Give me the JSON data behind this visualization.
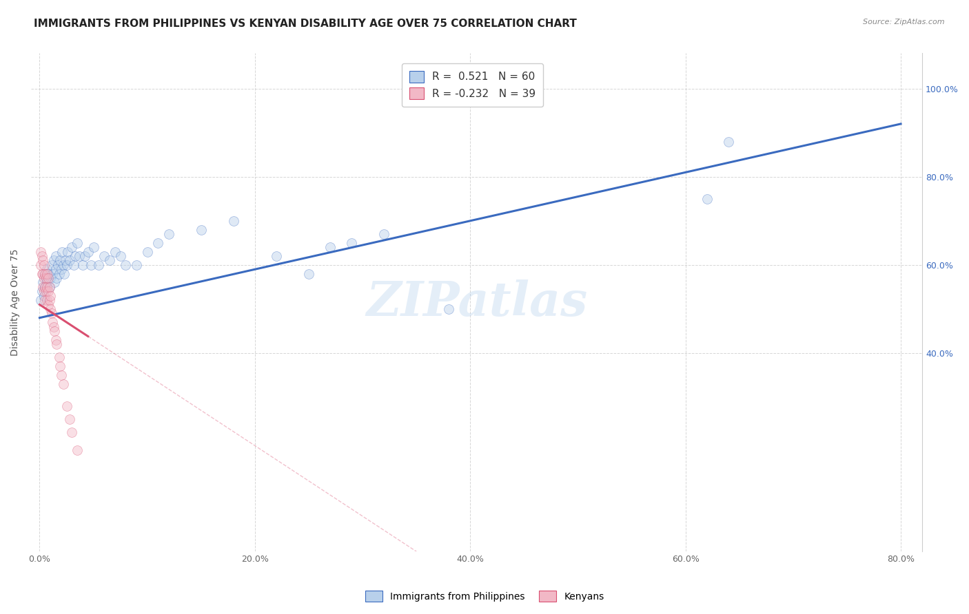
{
  "title": "IMMIGRANTS FROM PHILIPPINES VS KENYAN DISABILITY AGE OVER 75 CORRELATION CHART",
  "source": "Source: ZipAtlas.com",
  "ylabel": "Disability Age Over 75",
  "x_tick_labels": [
    "0.0%",
    "20.0%",
    "40.0%",
    "60.0%",
    "80.0%"
  ],
  "x_tick_vals": [
    0.0,
    0.2,
    0.4,
    0.6,
    0.8
  ],
  "y_tick_labels_right": [
    "100.0%",
    "80.0%",
    "60.0%",
    "40.0%"
  ],
  "y_tick_vals": [
    1.0,
    0.8,
    0.6,
    0.4
  ],
  "xlim": [
    -0.008,
    0.82
  ],
  "ylim": [
    -0.05,
    1.08
  ],
  "watermark": "ZIPatlas",
  "blue": {
    "name": "Immigrants from Philippines",
    "R": 0.521,
    "N": 60,
    "color": "#b8d0eb",
    "line_color": "#3a6abf",
    "x": [
      0.001,
      0.002,
      0.003,
      0.004,
      0.005,
      0.005,
      0.006,
      0.007,
      0.007,
      0.008,
      0.009,
      0.01,
      0.011,
      0.012,
      0.013,
      0.014,
      0.015,
      0.015,
      0.016,
      0.017,
      0.018,
      0.019,
      0.02,
      0.021,
      0.022,
      0.023,
      0.024,
      0.025,
      0.026,
      0.028,
      0.03,
      0.032,
      0.033,
      0.035,
      0.037,
      0.04,
      0.042,
      0.045,
      0.048,
      0.05,
      0.055,
      0.06,
      0.065,
      0.07,
      0.075,
      0.08,
      0.09,
      0.1,
      0.11,
      0.12,
      0.15,
      0.18,
      0.22,
      0.25,
      0.27,
      0.29,
      0.32,
      0.38,
      0.62,
      0.64
    ],
    "y": [
      0.52,
      0.54,
      0.56,
      0.53,
      0.55,
      0.58,
      0.57,
      0.59,
      0.56,
      0.58,
      0.55,
      0.57,
      0.6,
      0.58,
      0.61,
      0.56,
      0.59,
      0.62,
      0.57,
      0.6,
      0.58,
      0.61,
      0.59,
      0.63,
      0.6,
      0.58,
      0.61,
      0.6,
      0.63,
      0.61,
      0.64,
      0.6,
      0.62,
      0.65,
      0.62,
      0.6,
      0.62,
      0.63,
      0.6,
      0.64,
      0.6,
      0.62,
      0.61,
      0.63,
      0.62,
      0.6,
      0.6,
      0.63,
      0.65,
      0.67,
      0.68,
      0.7,
      0.62,
      0.58,
      0.64,
      0.65,
      0.67,
      0.5,
      0.75,
      0.88
    ]
  },
  "pink": {
    "name": "Kenyans",
    "R": -0.232,
    "N": 39,
    "color": "#f2b8c6",
    "line_color": "#d94f70",
    "x": [
      0.001,
      0.001,
      0.002,
      0.002,
      0.003,
      0.003,
      0.003,
      0.004,
      0.004,
      0.004,
      0.005,
      0.005,
      0.005,
      0.006,
      0.006,
      0.007,
      0.007,
      0.007,
      0.008,
      0.008,
      0.008,
      0.009,
      0.009,
      0.01,
      0.01,
      0.011,
      0.012,
      0.013,
      0.014,
      0.015,
      0.016,
      0.018,
      0.019,
      0.02,
      0.022,
      0.025,
      0.028,
      0.03,
      0.035
    ],
    "y": [
      0.6,
      0.63,
      0.58,
      0.62,
      0.55,
      0.58,
      0.61,
      0.54,
      0.57,
      0.6,
      0.52,
      0.55,
      0.58,
      0.54,
      0.57,
      0.52,
      0.55,
      0.58,
      0.51,
      0.54,
      0.57,
      0.52,
      0.55,
      0.5,
      0.53,
      0.49,
      0.47,
      0.46,
      0.45,
      0.43,
      0.42,
      0.39,
      0.37,
      0.35,
      0.33,
      0.28,
      0.25,
      0.22,
      0.18
    ]
  },
  "background_color": "#ffffff",
  "grid_color": "#cccccc",
  "title_fontsize": 11,
  "axis_label_fontsize": 10,
  "tick_fontsize": 9,
  "marker_size": 100,
  "marker_alpha": 0.45,
  "line_width": 2.2
}
